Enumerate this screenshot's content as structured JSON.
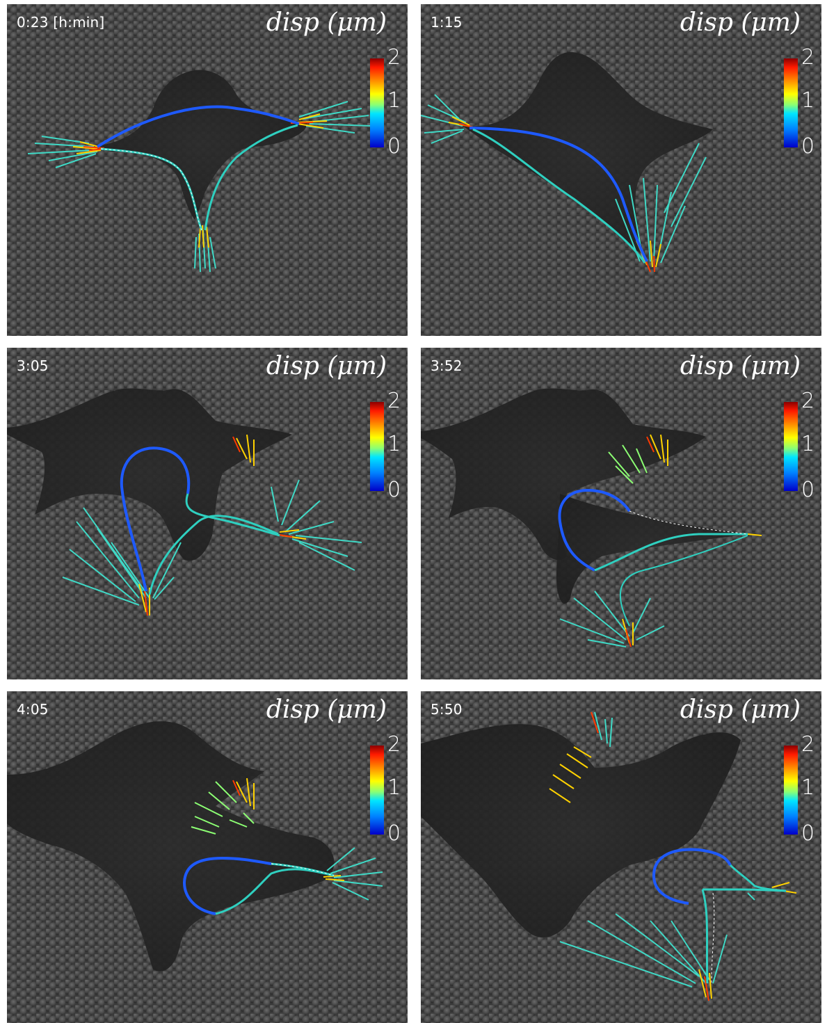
{
  "colorbar": {
    "title": "disp (μm)",
    "ticks": [
      "2",
      "1",
      "0"
    ],
    "colors": [
      "#8b0000",
      "#ff1a00",
      "#ff8c00",
      "#ffff00",
      "#8cff73",
      "#00e5ff",
      "#0080ff",
      "#0000c8"
    ]
  },
  "panels": [
    {
      "time": "0:23 [h:min]"
    },
    {
      "time": "1:15"
    },
    {
      "time": "3:05"
    },
    {
      "time": "3:52"
    },
    {
      "time": "4:05"
    },
    {
      "time": "5:50"
    }
  ],
  "colors": {
    "background_beads": "#3a3a3a",
    "cell": "#262626",
    "filament_blue": "#1e5aff",
    "filament_cyan": "#2fd0c0"
  }
}
